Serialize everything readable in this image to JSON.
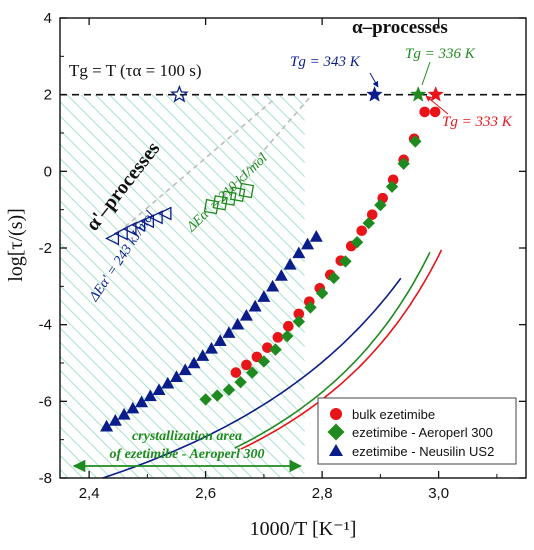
{
  "chart_data": {
    "type": "scatter",
    "title": "",
    "xlabel": "1000/T [K⁻¹]",
    "ylabel": "log[τ/(s)]",
    "xlim": [
      2.35,
      3.15
    ],
    "ylim": [
      -8,
      4
    ],
    "x_ticks": [
      "2,4",
      "2,6",
      "2,8",
      "3,0"
    ],
    "y_ticks": [
      "-8",
      "-6",
      "-4",
      "-2",
      "0",
      "2",
      "4"
    ],
    "colors": {
      "bulk": "#e8141a",
      "aeroperl": "#1f8a1f",
      "neusilin": "#0b1d8a",
      "hatch": "#8fdcbf",
      "dashed_gray": "#bdbdbd"
    },
    "series": [
      {
        "name": "bulk ezetimibe",
        "marker": "circle",
        "color": "#e8141a",
        "x": [
          2.652,
          2.67,
          2.688,
          2.706,
          2.724,
          2.742,
          2.76,
          2.778,
          2.796,
          2.814,
          2.832,
          2.85,
          2.868,
          2.886,
          2.904,
          2.922,
          2.94,
          2.958,
          2.976,
          2.994
        ],
        "y": [
          -5.25,
          -5.05,
          -4.84,
          -4.6,
          -4.33,
          -4.04,
          -3.72,
          -3.4,
          -3.05,
          -2.7,
          -2.33,
          -1.95,
          -1.55,
          -1.13,
          -0.7,
          -0.22,
          0.3,
          0.85,
          1.55,
          1.55
        ]
      },
      {
        "name": "ezetimibe - Aeroperl 300",
        "marker": "diamond",
        "color": "#1f8a1f",
        "x": [
          2.6,
          2.62,
          2.64,
          2.66,
          2.68,
          2.7,
          2.72,
          2.74,
          2.76,
          2.78,
          2.8,
          2.82,
          2.84,
          2.86,
          2.88,
          2.9,
          2.92,
          2.94,
          2.96
        ],
        "y": [
          -5.95,
          -5.85,
          -5.7,
          -5.5,
          -5.25,
          -4.96,
          -4.65,
          -4.3,
          -3.92,
          -3.55,
          -3.18,
          -2.78,
          -2.35,
          -1.85,
          -1.35,
          -0.88,
          -0.4,
          0.2,
          0.78
        ]
      },
      {
        "name": "ezetimibe - Neusilin US2",
        "marker": "triangle",
        "color": "#0b1d8a",
        "x": [
          2.43,
          2.445,
          2.46,
          2.475,
          2.49,
          2.505,
          2.52,
          2.535,
          2.55,
          2.565,
          2.58,
          2.595,
          2.61,
          2.625,
          2.64,
          2.655,
          2.67,
          2.685,
          2.7,
          2.715,
          2.73,
          2.745,
          2.76,
          2.775,
          2.79
        ],
        "y": [
          -6.65,
          -6.5,
          -6.34,
          -6.18,
          -6.02,
          -5.86,
          -5.7,
          -5.53,
          -5.36,
          -5.18,
          -5.0,
          -4.81,
          -4.62,
          -4.42,
          -4.21,
          -3.99,
          -3.76,
          -3.52,
          -3.27,
          -3.0,
          -2.72,
          -2.43,
          -2.13,
          -1.9,
          -1.7
        ]
      }
    ],
    "alpha_prime_points": [
      {
        "series": "ezetimibe - Neusilin US2",
        "marker": "open-triangle-left",
        "x": [
          2.44,
          2.455,
          2.47,
          2.485,
          2.5,
          2.515,
          2.53
        ],
        "y": [
          -1.75,
          -1.62,
          -1.5,
          -1.4,
          -1.3,
          -1.2,
          -1.1
        ]
      },
      {
        "series": "ezetimibe - Aeroperl 300",
        "marker": "open-square",
        "x": [
          2.61,
          2.625,
          2.64,
          2.655,
          2.67
        ],
        "y": [
          -0.92,
          -0.82,
          -0.7,
          -0.6,
          -0.5
        ]
      }
    ],
    "tg_points": [
      {
        "label": "Tg = 343 K",
        "x": 2.89,
        "y": 2.0,
        "color": "#0b1d8a"
      },
      {
        "label": "Tg = 336 K",
        "x": 2.965,
        "y": 2.0,
        "color": "#1f8a1f"
      },
      {
        "label": "Tg = 333 K",
        "x": 2.995,
        "y": 2.0,
        "color": "#e8141a"
      },
      {
        "label": "Tg = T (τα = 100 s)",
        "x": 2.555,
        "y": 2.0,
        "color": "#0b1d8a",
        "open": true
      }
    ],
    "reference_line": {
      "y": 2,
      "style": "dashed"
    },
    "shaded_region": {
      "x": [
        2.35,
        2.77
      ],
      "label": "crystallization area of ezetimibe - Aeroperl 300"
    },
    "annotations": {
      "alpha_processes": "α–processes",
      "alpha_prime_processes": "α'–processes",
      "tg_ref": "Tg = T (τα = 100 s)",
      "tg343": "Tg = 343 K",
      "tg336": "Tg = 336 K",
      "tg333": "Tg = 333 K",
      "ea243": "ΔEα' = 243 kJ/mol",
      "ea210": "ΔEα' = 210 kJ/mol",
      "cryst1": "crystallization area",
      "cryst2": "of ezetimibe - Aeroperl 300"
    },
    "legend": {
      "placement": "bottom-right",
      "entries": [
        "bulk ezetimibe",
        "ezetimibe - Aeroperl 300",
        "ezetimibe - Neusilin US2"
      ]
    }
  }
}
